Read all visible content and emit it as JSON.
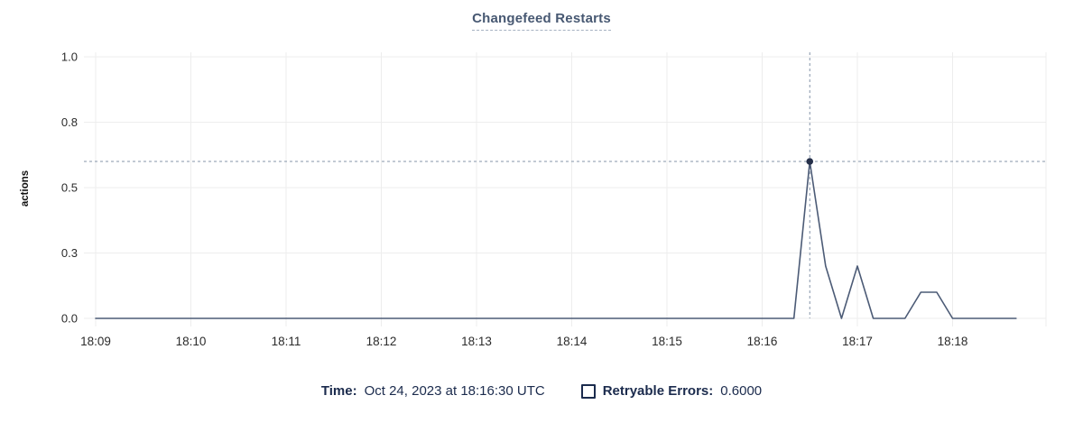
{
  "header": {
    "title": "Changefeed Restarts"
  },
  "colors": {
    "title": "#475872",
    "series_line": "#4c5b76",
    "hover_dot": "#26304a",
    "crosshair": "#8494a8",
    "gridline": "#ededed",
    "axis_text": "#2b2b2b",
    "legend_text": "#1b2b4d"
  },
  "chart_data": {
    "type": "line",
    "title": "Changefeed Restarts",
    "xlabel": "",
    "ylabel": "actions",
    "ylim": [
      0,
      1.0
    ],
    "grid": true,
    "legend_position": "bottom",
    "y_axis": {
      "ticks": [
        {
          "label": "1.0",
          "pos": 1.0
        },
        {
          "label": "0.8",
          "pos": 0.75
        },
        {
          "label": "0.5",
          "pos": 0.5
        },
        {
          "label": "0.3",
          "pos": 0.25
        },
        {
          "label": "0.0",
          "pos": 0.0
        }
      ]
    },
    "x_axis": {
      "ticks": [
        "18:09",
        "18:10",
        "18:11",
        "18:12",
        "18:13",
        "18:14",
        "18:15",
        "18:16",
        "18:17",
        "18:18"
      ],
      "minutes_per_tick": 1
    },
    "series": [
      {
        "name": "Retryable Errors",
        "color": "#4c5b76",
        "points": [
          [
            "18:09:00",
            0
          ],
          [
            "18:09:10",
            0
          ],
          [
            "18:09:20",
            0
          ],
          [
            "18:09:30",
            0
          ],
          [
            "18:09:40",
            0
          ],
          [
            "18:09:50",
            0
          ],
          [
            "18:10:00",
            0
          ],
          [
            "18:10:10",
            0
          ],
          [
            "18:10:20",
            0
          ],
          [
            "18:10:30",
            0
          ],
          [
            "18:10:40",
            0
          ],
          [
            "18:10:50",
            0
          ],
          [
            "18:11:00",
            0
          ],
          [
            "18:11:10",
            0
          ],
          [
            "18:11:20",
            0
          ],
          [
            "18:11:30",
            0
          ],
          [
            "18:11:40",
            0
          ],
          [
            "18:11:50",
            0
          ],
          [
            "18:12:00",
            0
          ],
          [
            "18:12:10",
            0
          ],
          [
            "18:12:20",
            0
          ],
          [
            "18:12:30",
            0
          ],
          [
            "18:12:40",
            0
          ],
          [
            "18:12:50",
            0
          ],
          [
            "18:13:00",
            0
          ],
          [
            "18:13:10",
            0
          ],
          [
            "18:13:20",
            0
          ],
          [
            "18:13:30",
            0
          ],
          [
            "18:13:40",
            0
          ],
          [
            "18:13:50",
            0
          ],
          [
            "18:14:00",
            0
          ],
          [
            "18:14:10",
            0
          ],
          [
            "18:14:20",
            0
          ],
          [
            "18:14:30",
            0
          ],
          [
            "18:14:40",
            0
          ],
          [
            "18:14:50",
            0
          ],
          [
            "18:15:00",
            0
          ],
          [
            "18:15:10",
            0
          ],
          [
            "18:15:20",
            0
          ],
          [
            "18:15:30",
            0
          ],
          [
            "18:15:40",
            0
          ],
          [
            "18:15:50",
            0
          ],
          [
            "18:16:00",
            0
          ],
          [
            "18:16:10",
            0
          ],
          [
            "18:16:20",
            0
          ],
          [
            "18:16:30",
            0.6
          ],
          [
            "18:16:40",
            0.2
          ],
          [
            "18:16:50",
            0
          ],
          [
            "18:17:00",
            0.2
          ],
          [
            "18:17:10",
            0
          ],
          [
            "18:17:20",
            0
          ],
          [
            "18:17:30",
            0
          ],
          [
            "18:17:40",
            0.1
          ],
          [
            "18:17:50",
            0.1
          ],
          [
            "18:18:00",
            0
          ],
          [
            "18:18:10",
            0
          ],
          [
            "18:18:20",
            0
          ],
          [
            "18:18:30",
            0
          ],
          [
            "18:18:40",
            0
          ]
        ]
      }
    ],
    "crosshair": {
      "time": "18:16:30",
      "value": 0.6
    }
  },
  "hover_legend": {
    "time_label": "Time:",
    "time_value": "Oct 24, 2023 at 18:16:30 UTC",
    "series_label": "Retryable Errors:",
    "series_value": "0.6000"
  }
}
